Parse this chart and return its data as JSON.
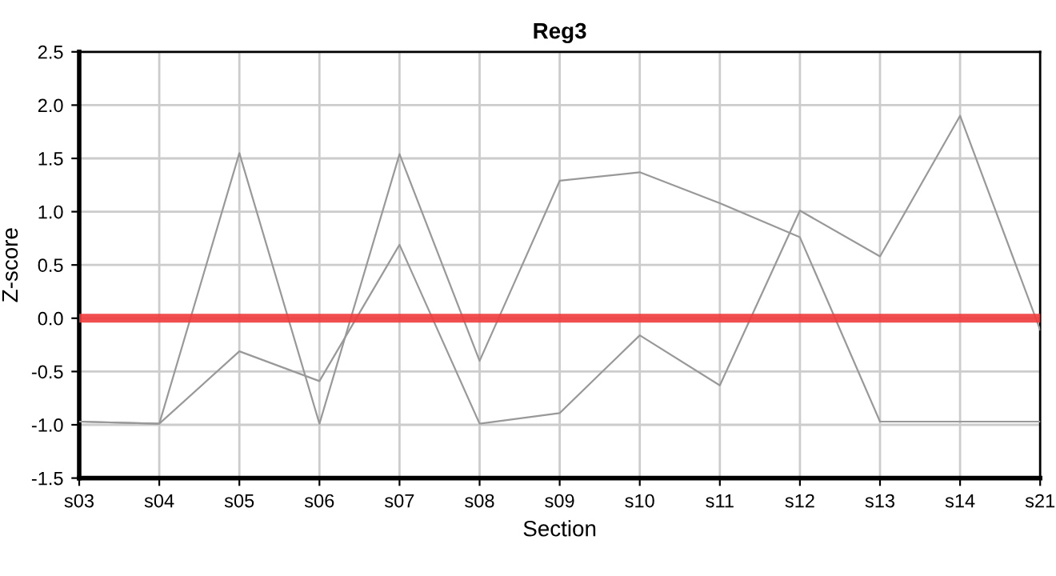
{
  "chart_data": {
    "type": "line",
    "title": "Reg3",
    "xlabel": "Section",
    "ylabel": "Z-score",
    "categories": [
      "s03",
      "s04",
      "s05",
      "s06",
      "s07",
      "s08",
      "s09",
      "s10",
      "s11",
      "s12",
      "s13",
      "s14",
      "s21"
    ],
    "series": [
      {
        "color": "#999999",
        "values": [
          -0.97,
          -0.99,
          1.55,
          -0.99,
          1.54,
          -0.4,
          1.29,
          1.37,
          1.08,
          0.76,
          -0.97,
          -0.97,
          -0.97
        ]
      },
      {
        "color": "#999999",
        "values": [
          -0.97,
          -0.99,
          -0.31,
          -0.59,
          0.69,
          -0.99,
          -0.89,
          -0.16,
          -0.63,
          1.01,
          0.58,
          1.9,
          -0.11
        ]
      }
    ],
    "ref_lines": [
      {
        "axis": "y",
        "value": 0,
        "color": "#f03c3c"
      }
    ],
    "ylim": [
      -1.5,
      2.5
    ],
    "yticks": [
      {
        "value": -1.5,
        "label": "-1.5"
      },
      {
        "value": -1.0,
        "label": "-1.0"
      },
      {
        "value": -0.5,
        "label": "-0.5"
      },
      {
        "value": 0,
        "label": "0.0"
      },
      {
        "value": 0.5,
        "label": "0.5"
      },
      {
        "value": 1.0,
        "label": "1.0"
      },
      {
        "value": 1.5,
        "label": "1.5"
      },
      {
        "value": 2.0,
        "label": "2.0"
      },
      {
        "value": 2.5,
        "label": "2.5"
      }
    ],
    "grid": true,
    "legend": false
  }
}
